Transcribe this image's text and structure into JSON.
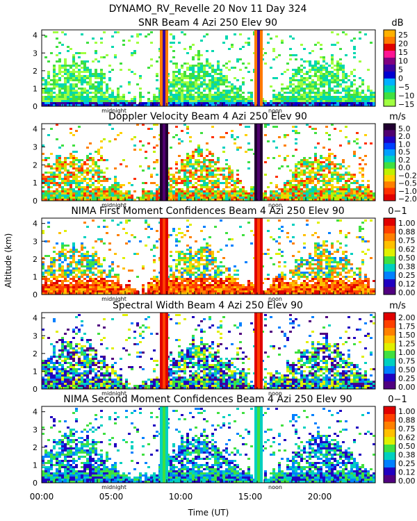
{
  "header": {
    "line1": "DYNAMO_RV_Revelle   20 Nov 11 Day 324"
  },
  "common": {
    "ylabel": "Altitude (km)",
    "xlabel": "Time (UT)",
    "x_ticklabels": [
      "00:00",
      "05:00",
      "10:00",
      "15:00",
      "20:00"
    ],
    "x_ticks_hours": [
      0,
      5,
      10,
      15,
      20
    ],
    "xlim_hours": [
      0,
      24
    ],
    "ylim_km": [
      0,
      4.3
    ],
    "y_ticks": [
      "0",
      "1",
      "2",
      "3",
      "4"
    ],
    "solar_markers": [
      {
        "label": "midnight",
        "hour": 5.2
      },
      {
        "label": "noon",
        "hour": 16.8
      }
    ]
  },
  "chart_data": [
    {
      "type": "heatmap",
      "title": "SNR Beam 4 Azi 250 Elev 90",
      "unit": "dB",
      "colorbar_labels": [
        "25",
        "20",
        "15",
        "10",
        "5",
        "0",
        "−5",
        "−10",
        "−15"
      ],
      "colorscale": [
        "#ffb000",
        "#ff7a00",
        "#e00000",
        "#ff1493",
        "#800080",
        "#3a00a0",
        "#0000d0",
        "#00b0ff",
        "#00d8b0",
        "#40e040",
        "#a0ff40"
      ],
      "features": [
        {
          "hour": 8.8,
          "top_km": 4.3,
          "note": "vertical band"
        },
        {
          "hour": 15.6,
          "top_km": 4.3,
          "note": "vertical band"
        }
      ]
    },
    {
      "type": "heatmap",
      "title": "Doppler Velocity Beam 4 Azi 250 Elev 90",
      "unit": "m/s",
      "colorbar_labels": [
        "5.0",
        "2.0",
        "1.0",
        "0.5",
        "0.2",
        "0.0",
        "−0.2",
        "−0.5",
        "−1.0",
        "−2.0"
      ],
      "colorscale": [
        "#200030",
        "#500070",
        "#2000c0",
        "#0040ff",
        "#00a0ff",
        "#00d0c0",
        "#40e040",
        "#c0f000",
        "#ffd000",
        "#ff8000",
        "#ff3000",
        "#e00000"
      ],
      "features": [
        {
          "hour": 8.8,
          "top_km": 4.3,
          "note": "vertical band"
        },
        {
          "hour": 15.6,
          "top_km": 4.3,
          "note": "vertical band"
        }
      ]
    },
    {
      "type": "heatmap",
      "title": "NIMA First Moment Confidences Beam 4 Azi 250 Elev 90",
      "unit": "0−1",
      "colorbar_labels": [
        "1.00",
        "0.88",
        "0.75",
        "0.62",
        "0.50",
        "0.38",
        "0.25",
        "0.12",
        "0.00"
      ],
      "colorscale": [
        "#e00000",
        "#ff4000",
        "#ff8000",
        "#ffc000",
        "#e0f000",
        "#40e040",
        "#00d0c0",
        "#0080ff",
        "#2000c0",
        "#500080"
      ],
      "features": [
        {
          "hour": 8.8,
          "top_km": 4.3,
          "note": "vertical band"
        },
        {
          "hour": 15.6,
          "top_km": 4.3,
          "note": "vertical band"
        }
      ]
    },
    {
      "type": "heatmap",
      "title": "Spectral Width Beam 4 Azi 250 Elev 90",
      "unit": "m/s",
      "colorbar_labels": [
        "2.00",
        "1.75",
        "1.50",
        "1.25",
        "1.00",
        "0.75",
        "0.50",
        "0.25",
        "0.00"
      ],
      "colorscale": [
        "#e00000",
        "#ff4000",
        "#ff8000",
        "#ffc000",
        "#e0f000",
        "#40e040",
        "#00d0c0",
        "#0080ff",
        "#2000c0",
        "#500080"
      ],
      "features": [
        {
          "hour": 8.8,
          "top_km": 4.3,
          "note": "vertical band"
        },
        {
          "hour": 15.6,
          "top_km": 4.3,
          "note": "vertical band"
        }
      ]
    },
    {
      "type": "heatmap",
      "title": "NIMA Second Moment Confidences Beam 4 Azi 250 Elev 90",
      "unit": "0−1",
      "colorbar_labels": [
        "1.00",
        "0.88",
        "0.75",
        "0.62",
        "0.50",
        "0.38",
        "0.25",
        "0.12",
        "0.00"
      ],
      "colorscale": [
        "#e00000",
        "#ff4000",
        "#ff8000",
        "#ffc000",
        "#e0f000",
        "#40e040",
        "#00d0c0",
        "#0080ff",
        "#2000c0",
        "#500080"
      ],
      "features": [
        {
          "hour": 8.8,
          "top_km": 4.3,
          "note": "vertical band"
        },
        {
          "hour": 15.6,
          "top_km": 4.3,
          "note": "vertical band"
        }
      ]
    }
  ]
}
